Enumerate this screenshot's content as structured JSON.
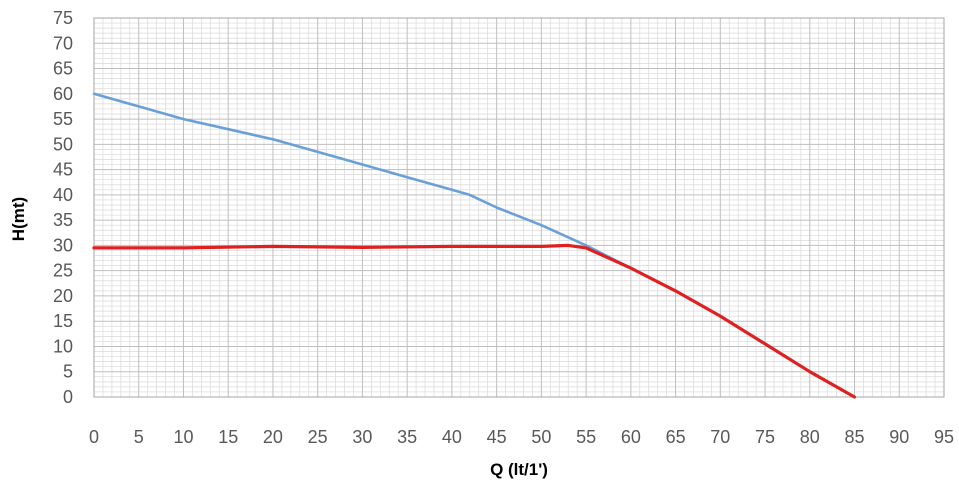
{
  "chart_data": {
    "type": "line",
    "title": "",
    "xlabel": "Q (lt/1')",
    "ylabel": "H(mt)",
    "xlim": [
      0,
      95
    ],
    "ylim": [
      0,
      75
    ],
    "x_ticks": [
      "0",
      "5",
      "10",
      "15",
      "20",
      "25",
      "30",
      "35",
      "40",
      "45",
      "50",
      "55",
      "60",
      "65",
      "70",
      "75",
      "80",
      "85",
      "90",
      "95"
    ],
    "y_ticks": [
      "0",
      "5",
      "10",
      "15",
      "20",
      "25",
      "30",
      "35",
      "40",
      "45",
      "50",
      "55",
      "60",
      "65",
      "70",
      "75"
    ],
    "grid": true,
    "minor_grid_step": 1,
    "legend": "none",
    "series": [
      {
        "color": "#6aa0d8",
        "points": [
          [
            0,
            60
          ],
          [
            5,
            57.5
          ],
          [
            10,
            55
          ],
          [
            15,
            53
          ],
          [
            20,
            51
          ],
          [
            25,
            48.5
          ],
          [
            30,
            46
          ],
          [
            35,
            43.5
          ],
          [
            40,
            41
          ],
          [
            42,
            40
          ],
          [
            45,
            37.5
          ],
          [
            50,
            34
          ],
          [
            55,
            30
          ],
          [
            60,
            25.5
          ],
          [
            65,
            21
          ],
          [
            70,
            16
          ],
          [
            75,
            10.5
          ],
          [
            80,
            5
          ],
          [
            85,
            0
          ]
        ]
      },
      {
        "color": "#e02020",
        "points": [
          [
            0,
            29.5
          ],
          [
            10,
            29.5
          ],
          [
            20,
            29.8
          ],
          [
            30,
            29.6
          ],
          [
            40,
            29.8
          ],
          [
            45,
            29.8
          ],
          [
            50,
            29.8
          ],
          [
            53,
            30
          ],
          [
            55,
            29.5
          ],
          [
            60,
            25.5
          ],
          [
            65,
            21
          ],
          [
            70,
            16
          ],
          [
            75,
            10.5
          ],
          [
            80,
            5
          ],
          [
            85,
            0
          ]
        ]
      }
    ]
  }
}
